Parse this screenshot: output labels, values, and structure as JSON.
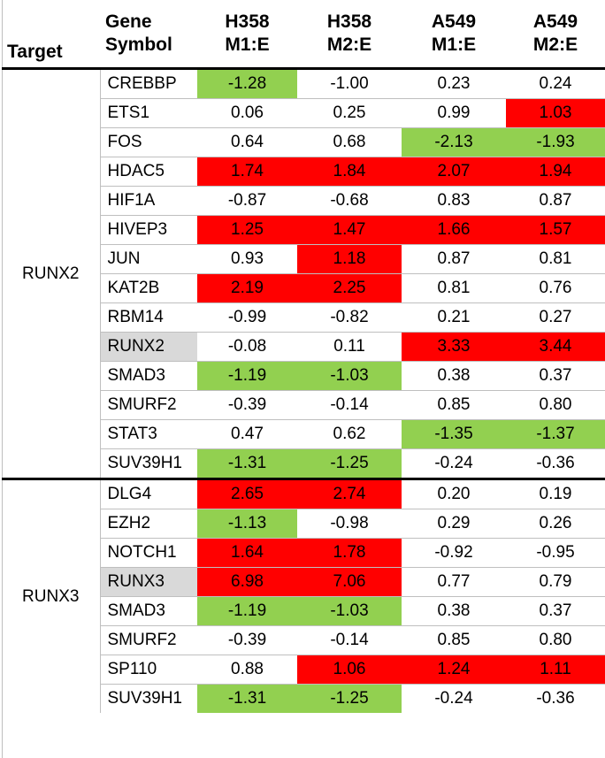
{
  "colors": {
    "high": "#ff0000",
    "low": "#92d050",
    "target_gene": "#d9d9d9"
  },
  "headers": {
    "target": "Target",
    "gene": [
      "Gene",
      "Symbol"
    ],
    "columns": [
      [
        "H358",
        "M1:E"
      ],
      [
        "H358",
        "M2:E"
      ],
      [
        "A549",
        "M1:E"
      ],
      [
        "A549",
        "M2:E"
      ]
    ]
  },
  "groups": [
    {
      "target": "RUNX2",
      "rows": [
        {
          "gene": "CREBBP",
          "values": [
            "-1.28",
            "-1.00",
            "0.23",
            "0.24"
          ],
          "marks": [
            "low",
            "",
            "",
            ""
          ]
        },
        {
          "gene": "ETS1",
          "values": [
            "0.06",
            "0.25",
            "0.99",
            "1.03"
          ],
          "marks": [
            "",
            "",
            "",
            "high"
          ]
        },
        {
          "gene": "FOS",
          "values": [
            "0.64",
            "0.68",
            "-2.13",
            "-1.93"
          ],
          "marks": [
            "",
            "",
            "low",
            "low"
          ]
        },
        {
          "gene": "HDAC5",
          "values": [
            "1.74",
            "1.84",
            "2.07",
            "1.94"
          ],
          "marks": [
            "high",
            "high",
            "high",
            "high"
          ]
        },
        {
          "gene": "HIF1A",
          "values": [
            "-0.87",
            "-0.68",
            "0.83",
            "0.87"
          ],
          "marks": [
            "",
            "",
            "",
            ""
          ]
        },
        {
          "gene": "HIVEP3",
          "values": [
            "1.25",
            "1.47",
            "1.66",
            "1.57"
          ],
          "marks": [
            "high",
            "high",
            "high",
            "high"
          ]
        },
        {
          "gene": "JUN",
          "values": [
            "0.93",
            "1.18",
            "0.87",
            "0.81"
          ],
          "marks": [
            "",
            "high",
            "",
            ""
          ]
        },
        {
          "gene": "KAT2B",
          "values": [
            "2.19",
            "2.25",
            "0.81",
            "0.76"
          ],
          "marks": [
            "high",
            "high",
            "",
            ""
          ]
        },
        {
          "gene": "RBM14",
          "values": [
            "-0.99",
            "-0.82",
            "0.21",
            "0.27"
          ],
          "marks": [
            "",
            "",
            "",
            ""
          ]
        },
        {
          "gene": "RUNX2",
          "gene_mark": "target_gene",
          "values": [
            "-0.08",
            "0.11",
            "3.33",
            "3.44"
          ],
          "marks": [
            "",
            "",
            "high",
            "high"
          ]
        },
        {
          "gene": "SMAD3",
          "values": [
            "-1.19",
            "-1.03",
            "0.38",
            "0.37"
          ],
          "marks": [
            "low",
            "low",
            "",
            ""
          ]
        },
        {
          "gene": "SMURF2",
          "values": [
            "-0.39",
            "-0.14",
            "0.85",
            "0.80"
          ],
          "marks": [
            "",
            "",
            "",
            ""
          ]
        },
        {
          "gene": "STAT3",
          "values": [
            "0.47",
            "0.62",
            "-1.35",
            "-1.37"
          ],
          "marks": [
            "",
            "",
            "low",
            "low"
          ]
        },
        {
          "gene": "SUV39H1",
          "values": [
            "-1.31",
            "-1.25",
            "-0.24",
            "-0.36"
          ],
          "marks": [
            "low",
            "low",
            "",
            ""
          ]
        }
      ]
    },
    {
      "target": "RUNX3",
      "rows": [
        {
          "gene": "DLG4",
          "values": [
            "2.65",
            "2.74",
            "0.20",
            "0.19"
          ],
          "marks": [
            "high",
            "high",
            "",
            ""
          ]
        },
        {
          "gene": "EZH2",
          "values": [
            "-1.13",
            "-0.98",
            "0.29",
            "0.26"
          ],
          "marks": [
            "low",
            "",
            "",
            ""
          ]
        },
        {
          "gene": "NOTCH1",
          "values": [
            "1.64",
            "1.78",
            "-0.92",
            "-0.95"
          ],
          "marks": [
            "high",
            "high",
            "",
            ""
          ]
        },
        {
          "gene": "RUNX3",
          "gene_mark": "target_gene",
          "values": [
            "6.98",
            "7.06",
            "0.77",
            "0.79"
          ],
          "marks": [
            "high",
            "high",
            "",
            ""
          ]
        },
        {
          "gene": "SMAD3",
          "values": [
            "-1.19",
            "-1.03",
            "0.38",
            "0.37"
          ],
          "marks": [
            "low",
            "low",
            "",
            ""
          ]
        },
        {
          "gene": "SMURF2",
          "values": [
            "-0.39",
            "-0.14",
            "0.85",
            "0.80"
          ],
          "marks": [
            "",
            "",
            "",
            ""
          ]
        },
        {
          "gene": "SP110",
          "values": [
            "0.88",
            "1.06",
            "1.24",
            "1.11"
          ],
          "marks": [
            "",
            "high",
            "high",
            "high"
          ]
        },
        {
          "gene": "SUV39H1",
          "values": [
            "-1.31",
            "-1.25",
            "-0.24",
            "-0.36"
          ],
          "marks": [
            "low",
            "low",
            "",
            ""
          ]
        }
      ]
    }
  ]
}
